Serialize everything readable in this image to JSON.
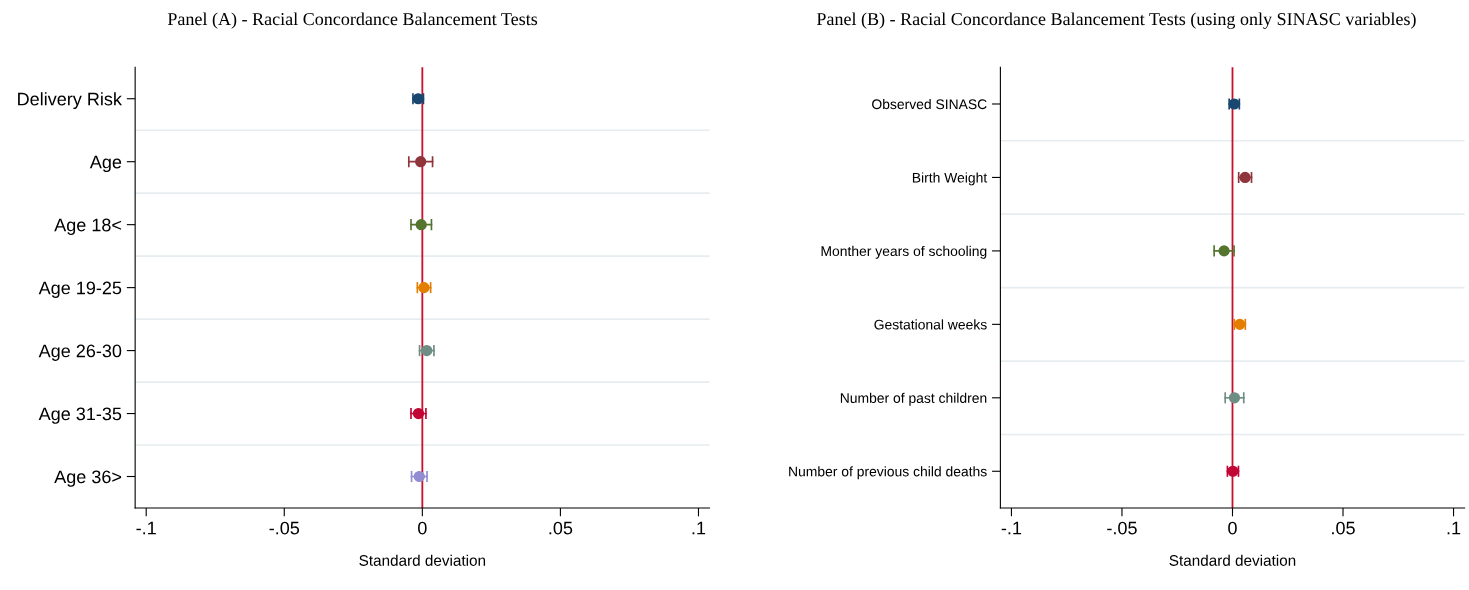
{
  "chart_data": [
    {
      "type": "scatter",
      "title": "Panel (A) - Racial Concordance Balancement Tests",
      "xlabel": "Standard deviation",
      "orientation": "horizontal",
      "categories": [
        "Delivery Risk",
        "Age",
        "Age 18<",
        "Age 19-25",
        "Age 26-30",
        "Age 31-35",
        "Age 36>"
      ],
      "values": [
        -0.0015,
        -0.0006,
        -0.0004,
        0.0006,
        0.0016,
        -0.0014,
        -0.0011
      ],
      "errors": [
        0.0019,
        0.0043,
        0.0037,
        0.0024,
        0.0026,
        0.0027,
        0.0028
      ],
      "colors": [
        "#1a476f",
        "#90353b",
        "#55752f",
        "#e37e00",
        "#6e8e84",
        "#c10534",
        "#938dd2"
      ],
      "xlim": [
        -0.104,
        0.104
      ],
      "xticks": [
        {
          "value": -0.1,
          "label": "-.1"
        },
        {
          "value": -0.05,
          "label": "-.05"
        },
        0,
        {
          "value": 0.05,
          "label": ".05"
        },
        {
          "value": 0.1,
          "label": ".1"
        }
      ],
      "ref_lines": [
        {
          "axis": "x",
          "value": 0,
          "label": null,
          "color": "#c8102e"
        }
      ],
      "grid": "y",
      "marker": "circle",
      "legend": false
    },
    {
      "type": "scatter",
      "title": "Panel (B) - Racial Concordance Balancement Tests (using only SINASC variables)",
      "xlabel": "Standard deviation",
      "orientation": "horizontal",
      "categories": [
        "Observed SINASC",
        "Birth Weight",
        "Monther years of schooling",
        "Gestational weeks",
        "Number of past children",
        "Number of previous child deaths"
      ],
      "values": [
        0.0008,
        0.0057,
        -0.0038,
        0.0033,
        0.0009,
        0.0002
      ],
      "errors": [
        0.0023,
        0.0029,
        0.0045,
        0.0025,
        0.0042,
        0.0025
      ],
      "colors": [
        "#1a476f",
        "#90353b",
        "#55752f",
        "#e37e00",
        "#6e8e84",
        "#c10534"
      ],
      "xlim": [
        -0.105,
        0.105
      ],
      "xticks": [
        {
          "value": -0.1,
          "label": "-.1"
        },
        {
          "value": -0.05,
          "label": "-.05"
        },
        0,
        {
          "value": 0.05,
          "label": ".05"
        },
        {
          "value": 0.1,
          "label": ".1"
        }
      ],
      "ref_lines": [
        {
          "axis": "x",
          "value": 0,
          "label": null,
          "color": "#c8102e"
        }
      ],
      "grid": "y",
      "marker": "circle",
      "legend": false
    }
  ]
}
